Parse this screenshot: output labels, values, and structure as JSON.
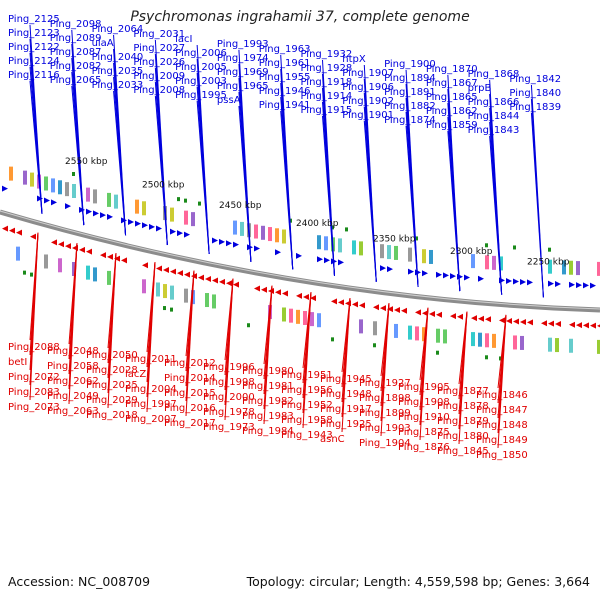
{
  "title": "Psychromonas ingrahamii 37, complete genome",
  "accession": "Accession: NC_008709",
  "stats": "Topology: circular; Length: 4,559,598 bp; Genes: 3,664",
  "colors": {
    "forward": "#0000dd",
    "reverse": "#e00000",
    "backbone": "#8c8c8c",
    "tick": "#1a8a1a"
  },
  "kbp_labels": [
    "2550 kbp",
    "2500 kbp",
    "2450 kbp",
    "2400 kbp",
    "2350 kbp",
    "2300 kbp",
    "2250 kbp"
  ],
  "top_labels": [
    "Ping_2125",
    "Ping_2123",
    "Ping_2122",
    "Ping_2124",
    "Ping_2116",
    "Ping_2098",
    "Ping_2089",
    "Ping_2087",
    "Ping_2082",
    "Ping_2065",
    "Ping_2064",
    "ulaA",
    "Ping_2040",
    "Ping_2035",
    "Ping_2033",
    "Ping_2031",
    "Ping_2027",
    "Ping_2026",
    "Ping_2009",
    "Ping_2008",
    "lacI",
    "Ping_2006",
    "Ping_2005",
    "Ping_2003",
    "Ping_1995",
    "Ping_1993",
    "Ping_1974",
    "Ping_1969",
    "Ping_1965",
    "pssA",
    "Ping_1963",
    "Ping_1961",
    "Ping_1955",
    "Ping_1946",
    "Ping_1941",
    "Ping_1932",
    "Ping_1928",
    "Ping_1918",
    "Ping_1914",
    "Ping_1915",
    "htpX",
    "Ping_1907",
    "Ping_1906",
    "Ping_1902",
    "Ping_1901",
    "Ping_1900",
    "Ping_1894",
    "Ping_1891",
    "Ping_1882",
    "Ping_1874",
    "Ping_1870",
    "Ping_1867",
    "Ping_1865",
    "Ping_1862",
    "Ping_1859",
    "Ping_1868",
    "prpB",
    "Ping_1866",
    "Ping_1844",
    "Ping_1843",
    "Ping_1842",
    "Ping_1840",
    "Ping_1839"
  ],
  "bottom_labels": [
    "Ping_2088",
    "betI",
    "Ping_2072",
    "Ping_2083",
    "Ping_2073",
    "Ping_2048",
    "Ping_2058",
    "Ping_2062",
    "Ping_2049",
    "Ping_2063",
    "Ping_2050",
    "Ping_2028",
    "Ping_2025",
    "Ping_2029",
    "Ping_2018",
    "Ping_2011",
    "lacZ",
    "Ping_2004",
    "Ping_1997",
    "Ping_2007",
    "Ping_2012",
    "Ping_2014",
    "Ping_2015",
    "Ping_2016",
    "Ping_2017",
    "Ping_1996",
    "Ping_1998",
    "Ping_2000",
    "Ping_1978",
    "Ping_1973",
    "Ping_1980",
    "Ping_1981",
    "Ping_1982",
    "Ping_1983",
    "Ping_1984",
    "Ping_1951",
    "Ping_1956",
    "Ping_1952",
    "Ping_1958",
    "Ping_1943",
    "Ping_1945",
    "Ping_1948",
    "Ping_1917",
    "Ping_1925",
    "asnC",
    "Ping_1927",
    "Ping_1898",
    "Ping_1899",
    "Ping_1903",
    "Ping_1904",
    "Ping_1905",
    "Ping_1908",
    "Ping_1910",
    "Ping_1875",
    "Ping_1876",
    "Ping_1877",
    "Ping_1878",
    "Ping_1879",
    "Ping_1880",
    "Ping_1845",
    "Ping_1846",
    "Ping_1847",
    "Ping_1848",
    "Ping_1849",
    "Ping_1850"
  ]
}
